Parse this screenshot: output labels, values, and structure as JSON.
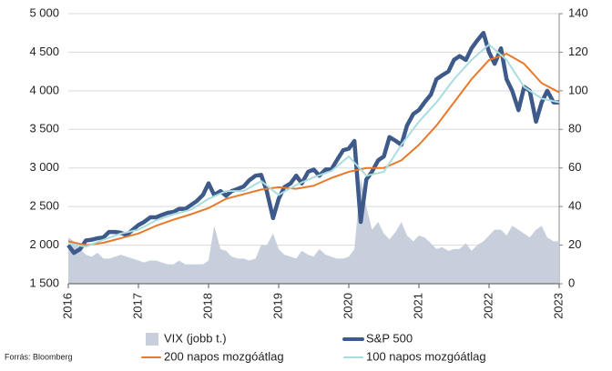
{
  "chart_data": {
    "type": "line",
    "source": "Forrás: Bloomberg",
    "xlim": [
      2016,
      2023
    ],
    "xticks": [
      2016,
      2017,
      2018,
      2019,
      2020,
      2021,
      2022,
      2023
    ],
    "ylim": [
      1500,
      5000
    ],
    "yticks": [
      {
        "value": 1500,
        "label": "1 500"
      },
      {
        "value": 2000,
        "label": "2 000"
      },
      {
        "value": 2500,
        "label": "2 500"
      },
      {
        "value": 3000,
        "label": "3 000"
      },
      {
        "value": 3500,
        "label": "3 500"
      },
      {
        "value": 4000,
        "label": "4 000"
      },
      {
        "value": 4500,
        "label": "4 500"
      },
      {
        "value": 5000,
        "label": "5 000"
      }
    ],
    "y2lim": [
      0,
      140
    ],
    "y2ticks": [
      0,
      20,
      40,
      60,
      80,
      100,
      120,
      140
    ],
    "grid": true,
    "series": [
      {
        "name": "VIX (jobb t.)",
        "kind": "area",
        "axis": "y2",
        "color": "#c7cfdc",
        "x": [
          2016,
          2016.08,
          2016.17,
          2016.25,
          2016.33,
          2016.42,
          2016.5,
          2016.58,
          2016.67,
          2016.75,
          2016.83,
          2016.92,
          2017,
          2017.08,
          2017.17,
          2017.25,
          2017.33,
          2017.42,
          2017.5,
          2017.58,
          2017.67,
          2017.75,
          2017.83,
          2017.92,
          2018,
          2018.08,
          2018.17,
          2018.25,
          2018.33,
          2018.42,
          2018.5,
          2018.58,
          2018.67,
          2018.75,
          2018.83,
          2018.92,
          2019,
          2019.08,
          2019.17,
          2019.25,
          2019.33,
          2019.42,
          2019.5,
          2019.58,
          2019.67,
          2019.75,
          2019.83,
          2019.92,
          2020,
          2020.08,
          2020.17,
          2020.25,
          2020.33,
          2020.42,
          2020.5,
          2020.58,
          2020.67,
          2020.75,
          2020.83,
          2020.92,
          2021,
          2021.08,
          2021.17,
          2021.25,
          2021.33,
          2021.42,
          2021.5,
          2021.58,
          2021.67,
          2021.75,
          2021.83,
          2021.92,
          2022,
          2022.08,
          2022.17,
          2022.25,
          2022.33,
          2022.42,
          2022.5,
          2022.58,
          2022.67,
          2022.75,
          2022.83,
          2022.92,
          2023
        ],
        "values": [
          24,
          22,
          18,
          15,
          14,
          16,
          13,
          13,
          14,
          15,
          14,
          13,
          12,
          11,
          12,
          12,
          11,
          10,
          10,
          12,
          10,
          10,
          10,
          10,
          12,
          30,
          18,
          17,
          14,
          13,
          13,
          12,
          13,
          20,
          20,
          26,
          18,
          15,
          14,
          13,
          17,
          15,
          14,
          18,
          15,
          14,
          13,
          13,
          14,
          18,
          55,
          40,
          28,
          32,
          26,
          23,
          27,
          32,
          25,
          22,
          25,
          24,
          21,
          18,
          19,
          17,
          18,
          18,
          21,
          17,
          20,
          22,
          25,
          28,
          28,
          25,
          30,
          28,
          26,
          24,
          28,
          30,
          24,
          22,
          22
        ]
      },
      {
        "name": "S&P 500",
        "kind": "line",
        "color": "#3d5a8a",
        "width": 4.5,
        "x": [
          2016,
          2016.08,
          2016.17,
          2016.25,
          2016.33,
          2016.42,
          2016.5,
          2016.58,
          2016.67,
          2016.75,
          2016.83,
          2016.92,
          2017,
          2017.08,
          2017.17,
          2017.25,
          2017.33,
          2017.42,
          2017.5,
          2017.58,
          2017.67,
          2017.75,
          2017.83,
          2017.92,
          2018,
          2018.08,
          2018.17,
          2018.25,
          2018.33,
          2018.42,
          2018.5,
          2018.58,
          2018.67,
          2018.75,
          2018.83,
          2018.92,
          2019,
          2019.08,
          2019.17,
          2019.25,
          2019.33,
          2019.42,
          2019.5,
          2019.58,
          2019.67,
          2019.75,
          2019.83,
          2019.92,
          2020,
          2020.08,
          2020.17,
          2020.25,
          2020.33,
          2020.42,
          2020.5,
          2020.58,
          2020.67,
          2020.75,
          2020.83,
          2020.92,
          2021,
          2021.08,
          2021.17,
          2021.25,
          2021.33,
          2021.42,
          2021.5,
          2021.58,
          2021.67,
          2021.75,
          2021.83,
          2021.92,
          2022,
          2022.08,
          2022.17,
          2022.25,
          2022.33,
          2022.42,
          2022.5,
          2022.58,
          2022.67,
          2022.75,
          2022.83,
          2022.92,
          2023
        ],
        "values": [
          2000,
          1900,
          1950,
          2060,
          2070,
          2090,
          2100,
          2170,
          2170,
          2160,
          2130,
          2200,
          2260,
          2300,
          2360,
          2360,
          2390,
          2420,
          2430,
          2470,
          2470,
          2520,
          2570,
          2650,
          2800,
          2650,
          2700,
          2640,
          2700,
          2730,
          2760,
          2840,
          2900,
          2910,
          2700,
          2350,
          2600,
          2750,
          2800,
          2900,
          2800,
          2950,
          2980,
          2900,
          2980,
          2980,
          3100,
          3230,
          3250,
          3350,
          2300,
          2850,
          2950,
          3100,
          3150,
          3400,
          3350,
          3300,
          3550,
          3700,
          3750,
          3850,
          3950,
          4150,
          4200,
          4250,
          4400,
          4450,
          4400,
          4550,
          4650,
          4750,
          4500,
          4350,
          4550,
          4150,
          4000,
          3750,
          4050,
          4000,
          3600,
          3850,
          4000,
          3850,
          3850
        ]
      },
      {
        "name": "200 napos mozgóátlag",
        "kind": "line",
        "color": "#e8792a",
        "width": 2,
        "x": [
          2016,
          2016.25,
          2016.5,
          2016.75,
          2017,
          2017.25,
          2017.5,
          2017.75,
          2018,
          2018.25,
          2018.5,
          2018.75,
          2019,
          2019.25,
          2019.5,
          2019.75,
          2020,
          2020.25,
          2020.5,
          2020.75,
          2021,
          2021.25,
          2021.5,
          2021.75,
          2022,
          2022.25,
          2022.5,
          2022.75,
          2023
        ],
        "values": [
          2050,
          2000,
          2030,
          2090,
          2150,
          2250,
          2330,
          2400,
          2480,
          2600,
          2660,
          2720,
          2750,
          2730,
          2770,
          2870,
          2950,
          3000,
          3000,
          3100,
          3300,
          3550,
          3850,
          4150,
          4400,
          4480,
          4350,
          4100,
          3980
        ]
      },
      {
        "name": "100 napos mozgóátlag",
        "kind": "line",
        "color": "#a9dde0",
        "width": 2,
        "x": [
          2016,
          2016.25,
          2016.5,
          2016.75,
          2017,
          2017.25,
          2017.5,
          2017.75,
          2018,
          2018.25,
          2018.5,
          2018.75,
          2019,
          2019.25,
          2019.5,
          2019.75,
          2020,
          2020.25,
          2020.5,
          2020.75,
          2021,
          2021.25,
          2021.5,
          2021.75,
          2022,
          2022.25,
          2022.5,
          2022.75,
          2023
        ],
        "values": [
          2020,
          1980,
          2070,
          2150,
          2200,
          2320,
          2400,
          2460,
          2600,
          2700,
          2700,
          2830,
          2650,
          2780,
          2880,
          2960,
          3150,
          2900,
          2950,
          3300,
          3600,
          3850,
          4150,
          4400,
          4600,
          4400,
          4050,
          3900,
          3850
        ]
      }
    ]
  }
}
